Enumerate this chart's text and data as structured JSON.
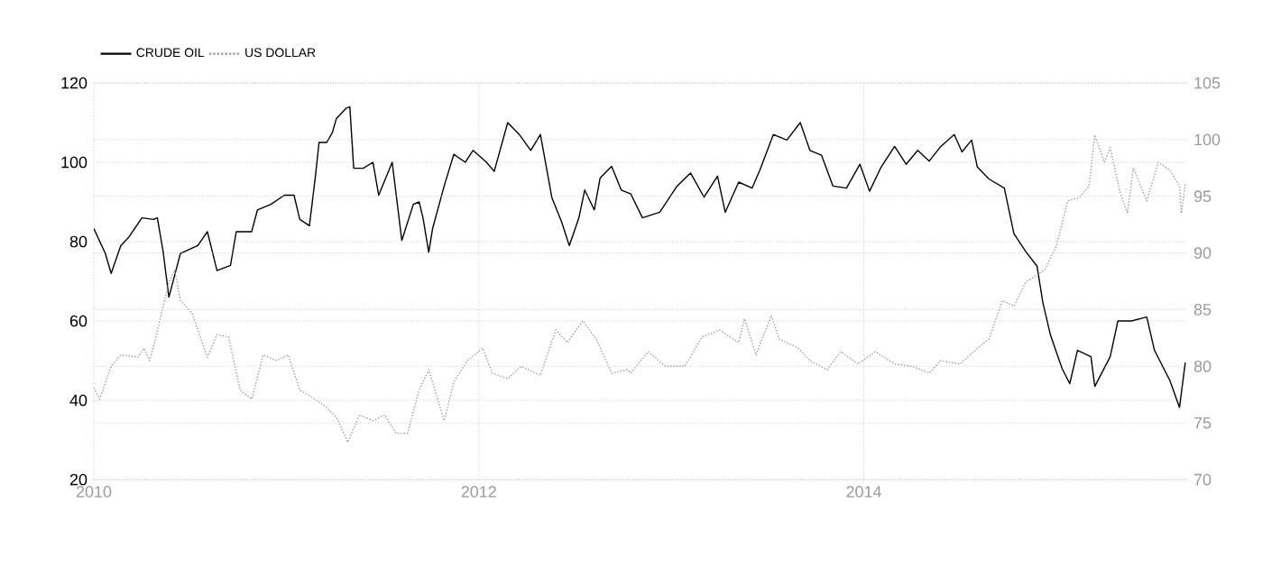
{
  "chart_data": {
    "type": "line",
    "xlim": [
      2010,
      2015.68
    ],
    "xticks": [
      2010,
      2012,
      2014
    ],
    "ylim": [
      20,
      120
    ],
    "yticks": [
      20,
      40,
      60,
      80,
      100,
      120
    ],
    "y2lim": [
      70,
      105
    ],
    "y2ticks": [
      70,
      75,
      80,
      85,
      90,
      95,
      100,
      105
    ],
    "grid": true,
    "legend": "top left",
    "marker": "none",
    "series": [
      {
        "name": "CRUDE OIL",
        "color": "#000000",
        "line_style": "solid",
        "x": [
          2010.0,
          2010.06,
          2010.09,
          2010.14,
          2010.18,
          2010.25,
          2010.31,
          2010.33,
          2010.36,
          2010.39,
          2010.45,
          2010.54,
          2010.59,
          2010.64,
          2010.71,
          2010.74,
          2010.82,
          2010.85,
          2010.92,
          2010.99,
          2011.04,
          2011.07,
          2011.12,
          2011.15,
          2011.17,
          2011.21,
          2011.24,
          2011.26,
          2011.31,
          2011.33,
          2011.35,
          2011.4,
          2011.45,
          2011.48,
          2011.55,
          2011.6,
          2011.66,
          2011.69,
          2011.71,
          2011.74,
          2011.76,
          2011.82,
          2011.87,
          2011.93,
          2011.97,
          2012.04,
          2012.08,
          2012.15,
          2012.21,
          2012.27,
          2012.32,
          2012.38,
          2012.43,
          2012.47,
          2012.52,
          2012.55,
          2012.6,
          2012.63,
          2012.69,
          2012.74,
          2012.79,
          2012.85,
          2012.94,
          2013.03,
          2013.1,
          2013.17,
          2013.24,
          2013.28,
          2013.35,
          2013.42,
          2013.46,
          2013.53,
          2013.6,
          2013.67,
          2013.72,
          2013.78,
          2013.84,
          2013.91,
          2013.98,
          2014.03,
          2014.09,
          2014.16,
          2014.22,
          2014.28,
          2014.34,
          2014.4,
          2014.47,
          2014.51,
          2014.56,
          2014.59,
          2014.65,
          2014.73,
          2014.78,
          2014.84,
          2014.9,
          2014.93,
          2014.97,
          2015.03,
          2015.07,
          2015.11,
          2015.18,
          2015.2,
          2015.28,
          2015.32,
          2015.39,
          2015.47,
          2015.51,
          2015.59,
          2015.64,
          2015.67
        ],
        "values": [
          83.3,
          77,
          72,
          79,
          81,
          86,
          85.6,
          86,
          77.5,
          66,
          77,
          79,
          82.5,
          72.7,
          74,
          82.5,
          82.5,
          88,
          89.4,
          91.7,
          91.7,
          85.6,
          84,
          96,
          105,
          105,
          107.6,
          111,
          113.6,
          114,
          98.5,
          98.5,
          100,
          91.7,
          100,
          80.3,
          89.4,
          90,
          86,
          77.3,
          83.3,
          94,
          102,
          100,
          103,
          100,
          97.7,
          110,
          107,
          103,
          107,
          91,
          85,
          79,
          86,
          93,
          88,
          96,
          99,
          93,
          92,
          86,
          87.4,
          94,
          97.3,
          91.2,
          96.5,
          87.4,
          95,
          93.5,
          98,
          107,
          105.6,
          110,
          103,
          101.8,
          94,
          93.5,
          99.5,
          92.7,
          98.8,
          104,
          99.5,
          103,
          100.3,
          104,
          107,
          102.6,
          105.6,
          98.8,
          95.8,
          93.5,
          82,
          77.6,
          73.8,
          64.7,
          56.4,
          48,
          44.2,
          52.6,
          51,
          43.5,
          51,
          60,
          60,
          61,
          52.6,
          45,
          38.2,
          49.5
        ]
      },
      {
        "name": "US DOLLAR",
        "color": "#999999",
        "line_style": "dotted",
        "axis": "y2",
        "x": [
          2010.0,
          2010.03,
          2010.09,
          2010.14,
          2010.23,
          2010.26,
          2010.29,
          2010.32,
          2010.36,
          2010.39,
          2010.42,
          2010.45,
          2010.51,
          2010.59,
          2010.64,
          2010.7,
          2010.76,
          2010.82,
          2010.88,
          2010.95,
          2011.01,
          2011.07,
          2011.13,
          2011.2,
          2011.26,
          2011.32,
          2011.38,
          2011.45,
          2011.51,
          2011.57,
          2011.63,
          2011.69,
          2011.74,
          2011.82,
          2011.87,
          2011.94,
          2012.02,
          2012.07,
          2012.15,
          2012.22,
          2012.32,
          2012.4,
          2012.46,
          2012.54,
          2012.61,
          2012.69,
          2012.77,
          2012.79,
          2012.88,
          2012.97,
          2013.07,
          2013.16,
          2013.25,
          2013.35,
          2013.38,
          2013.44,
          2013.52,
          2013.56,
          2013.66,
          2013.72,
          2013.81,
          2013.88,
          2013.97,
          2014.06,
          2014.16,
          2014.25,
          2014.34,
          2014.4,
          2014.5,
          2014.59,
          2014.65,
          2014.72,
          2014.78,
          2014.84,
          2014.94,
          2015.0,
          2015.06,
          2015.12,
          2015.17,
          2015.2,
          2015.25,
          2015.28,
          2015.33,
          2015.37,
          2015.4,
          2015.47,
          2015.53,
          2015.59,
          2015.64,
          2015.65,
          2015.67
        ],
        "values": [
          78.1,
          77.1,
          80,
          81,
          80.8,
          81.6,
          80.5,
          82.4,
          85.3,
          87.4,
          88.5,
          85.8,
          84.7,
          80.8,
          82.8,
          82.6,
          77.9,
          77.1,
          81,
          80.5,
          81,
          77.9,
          77.3,
          76.5,
          75.5,
          73.3,
          75.7,
          75.2,
          75.7,
          74.1,
          74.1,
          77.9,
          79.7,
          75.2,
          78.6,
          80.5,
          81.6,
          79.4,
          78.9,
          80,
          79.2,
          83.2,
          82.1,
          84,
          82.4,
          79.4,
          79.7,
          79.4,
          81.3,
          80,
          80,
          82.6,
          83.2,
          82.1,
          84.2,
          81,
          84.5,
          82.4,
          81.6,
          80.5,
          79.7,
          81.3,
          80.2,
          81.3,
          80.2,
          80,
          79.4,
          80.5,
          80.2,
          81.6,
          82.4,
          85.8,
          85.3,
          87.4,
          88.5,
          90.6,
          94.6,
          94.9,
          95.9,
          100.4,
          98,
          99.3,
          95.4,
          93.5,
          97.5,
          94.6,
          98,
          97.3,
          95.9,
          93.5,
          96.1
        ]
      }
    ]
  }
}
